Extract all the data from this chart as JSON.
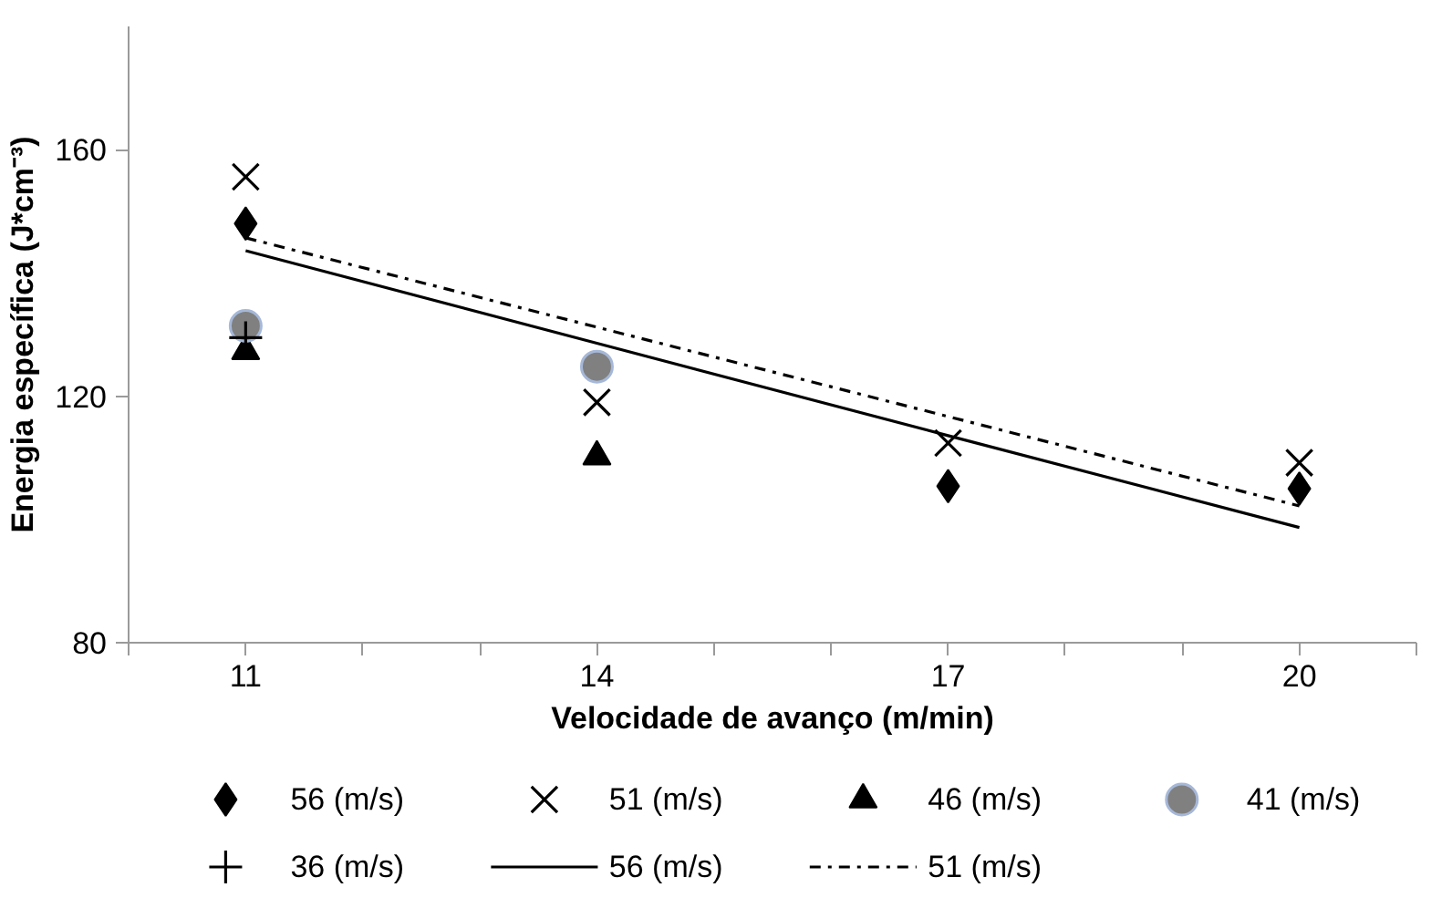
{
  "chart_data": {
    "type": "scatter",
    "xlabel": "Velocidade de avanço (m/min)",
    "ylabel": "Energia específica (J*cm⁻³)",
    "x": [
      11,
      14,
      17,
      20
    ],
    "xlim": [
      10,
      21
    ],
    "xticks": [
      {
        "value": 10,
        "label": null
      },
      11,
      {
        "value": 12,
        "label": null
      },
      {
        "value": 13,
        "label": null
      },
      14,
      {
        "value": 15,
        "label": null
      },
      {
        "value": 16,
        "label": null
      },
      17,
      {
        "value": 18,
        "label": null
      },
      {
        "value": 19,
        "label": null
      },
      20,
      {
        "value": 21,
        "label": null
      }
    ],
    "ylim": [
      80,
      180
    ],
    "yticks": [
      80,
      120,
      160
    ],
    "grid": false,
    "legend": "bottom",
    "series": [
      {
        "name": "56 (m/s)",
        "color": "#000000",
        "marker": "diamond",
        "values": [
          148,
          null,
          105.4,
          105
        ]
      },
      {
        "name": "51 (m/s)",
        "color": "#000000",
        "marker": "x",
        "values": [
          155.6,
          119,
          112.4,
          109.2
        ]
      },
      {
        "name": "46 (m/s)",
        "color": "#000000",
        "marker": "triangle",
        "values": [
          127.3,
          110.2,
          null,
          null
        ]
      },
      {
        "name": "41 (m/s)",
        "color": "#808080",
        "marker": "circle",
        "values": [
          131.4,
          124.8,
          null,
          null
        ]
      },
      {
        "name": "36 (m/s)",
        "color": "#000000",
        "marker": "cross",
        "values": [
          129.5,
          null,
          null,
          null
        ]
      },
      {
        "name": "56 (m/s)",
        "type": "line",
        "color": "#000000",
        "line_style": "solid",
        "values": [
          143.6,
          128.6,
          113.6,
          98.7
        ]
      },
      {
        "name": "51 (m/s)",
        "type": "line",
        "color": "#000000",
        "line_style": "dashdot",
        "values": [
          145.7,
          131.2,
          116.7,
          102.2
        ]
      }
    ]
  }
}
